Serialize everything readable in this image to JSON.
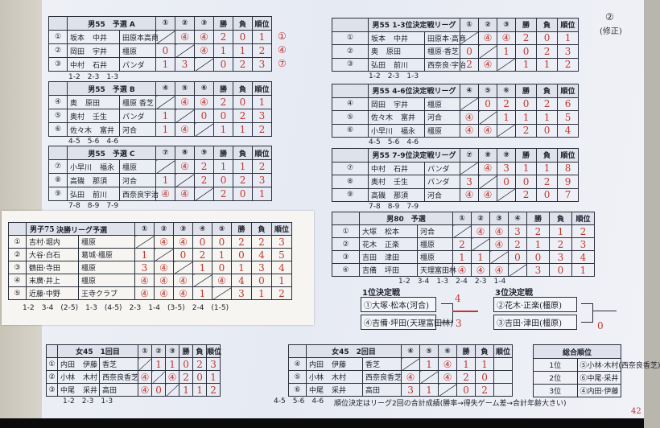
{
  "corner_note": {
    "number": "②",
    "label": "(修正)"
  },
  "page_number": "42",
  "headers": {
    "wins": "勝",
    "losses": "負",
    "rank": "順位"
  },
  "tables": [
    {
      "id": "m55-a",
      "title": "男55　予選 A",
      "cols": [
        "①",
        "②",
        "③"
      ],
      "rows": [
        {
          "no": "①",
          "p1": "坂本",
          "p2": "中井",
          "club": "田原本高商",
          "results": [
            "",
            "④",
            "④"
          ],
          "w": "2",
          "l": "0",
          "rank": "1"
        },
        {
          "no": "②",
          "p1": "岡田",
          "p2": "宇井",
          "club": "橿原",
          "results": [
            "0",
            "",
            "④"
          ],
          "w": "1",
          "l": "1",
          "rank": "2"
        },
        {
          "no": "③",
          "p1": "中村",
          "p2": "石井",
          "club": "パンダ",
          "results": [
            "1",
            "3",
            ""
          ],
          "w": "0",
          "l": "2",
          "rank": "3"
        }
      ],
      "matches": [
        "1-2",
        "2-3",
        "1-3"
      ],
      "margin": [
        "①",
        "④",
        "⑦"
      ]
    },
    {
      "id": "m55-b",
      "title": "男55　予選 B",
      "cols": [
        "④",
        "⑤",
        "⑥"
      ],
      "rows": [
        {
          "no": "④",
          "p1": "奥",
          "p2": "原田",
          "club": "橿原 香芝",
          "results": [
            "",
            "④",
            "④"
          ],
          "w": "2",
          "l": "0",
          "rank": "1"
        },
        {
          "no": "⑤",
          "p1": "奥村",
          "p2": "壬生",
          "club": "パンダ",
          "results": [
            "1",
            "",
            "0"
          ],
          "w": "0",
          "l": "2",
          "rank": "3"
        },
        {
          "no": "⑥",
          "p1": "佐々木",
          "p2": "富井",
          "club": "河合",
          "results": [
            "1",
            "④",
            ""
          ],
          "w": "1",
          "l": "1",
          "rank": "2"
        }
      ],
      "matches": [
        "4-5",
        "5-6",
        "4-6"
      ]
    },
    {
      "id": "m55-c",
      "title": "男55　予選 C",
      "cols": [
        "⑦",
        "⑧",
        "⑨"
      ],
      "rows": [
        {
          "no": "⑦",
          "p1": "小早川",
          "p2": "福永",
          "club": "橿原",
          "results": [
            "",
            "④",
            "2"
          ],
          "w": "1",
          "l": "1",
          "rank": "2"
        },
        {
          "no": "⑧",
          "p1": "高磯",
          "p2": "那須",
          "club": "河合",
          "results": [
            "1",
            "",
            "2"
          ],
          "w": "0",
          "l": "2",
          "rank": "3"
        },
        {
          "no": "⑨",
          "p1": "弘田",
          "p2": "前川",
          "club": "西奈良宇治",
          "results": [
            "④",
            "④",
            ""
          ],
          "w": "2",
          "l": "0",
          "rank": "1"
        }
      ],
      "matches": [
        "7-8",
        "8-9",
        "7-9"
      ]
    },
    {
      "id": "m55-13",
      "title": "男55 1-3位決定戦リーグ",
      "cols": [
        "①",
        "②",
        "③"
      ],
      "rows": [
        {
          "no": "①",
          "p1": "坂本",
          "p2": "中井",
          "club": "田原本·高商",
          "results": [
            "",
            "④",
            "④"
          ],
          "w": "2",
          "l": "0",
          "rank": "1"
        },
        {
          "no": "②",
          "p1": "奥",
          "p2": "原田",
          "club": "橿原·香芝",
          "results": [
            "0",
            "",
            "1"
          ],
          "w": "0",
          "l": "2",
          "rank": "3"
        },
        {
          "no": "③",
          "p1": "弘田",
          "p2": "前川",
          "club": "西奈良·宇治",
          "results": [
            "2",
            "④",
            ""
          ],
          "w": "1",
          "l": "1",
          "rank": "2"
        }
      ],
      "matches": [
        "1-2",
        "2-3",
        "1-3"
      ]
    },
    {
      "id": "m55-46",
      "title": "男55 4-6位決定戦リーグ",
      "cols": [
        "④",
        "⑤",
        "⑥"
      ],
      "rows": [
        {
          "no": "④",
          "p1": "岡田",
          "p2": "宇井",
          "club": "橿原",
          "results": [
            "",
            "0",
            "2"
          ],
          "w": "0",
          "l": "2",
          "rank": "6"
        },
        {
          "no": "⑤",
          "p1": "佐々木",
          "p2": "富井",
          "club": "河合",
          "results": [
            "④",
            "",
            "1"
          ],
          "w": "1",
          "l": "1",
          "rank": "5"
        },
        {
          "no": "⑥",
          "p1": "小早川",
          "p2": "福永",
          "club": "橿原",
          "results": [
            "④",
            "④",
            ""
          ],
          "w": "2",
          "l": "0",
          "rank": "4"
        }
      ],
      "matches": [
        "4-5",
        "5-6",
        "4-6"
      ]
    },
    {
      "id": "m55-79",
      "title": "男55 7-9位決定戦リーグ",
      "cols": [
        "⑦",
        "⑧",
        "⑨"
      ],
      "rows": [
        {
          "no": "⑦",
          "p1": "中村",
          "p2": "石井",
          "club": "パンダ",
          "results": [
            "",
            "④",
            "3"
          ],
          "w": "1",
          "l": "1",
          "rank": "8"
        },
        {
          "no": "⑧",
          "p1": "奥村",
          "p2": "壬生",
          "club": "パンダ",
          "results": [
            "3",
            "",
            "0"
          ],
          "w": "0",
          "l": "2",
          "rank": "9"
        },
        {
          "no": "⑨",
          "p1": "高磯",
          "p2": "那須",
          "club": "河合",
          "results": [
            "④",
            "④",
            ""
          ],
          "w": "2",
          "l": "0",
          "rank": "7"
        }
      ],
      "matches": [
        "7-8",
        "8-9",
        "7-9"
      ]
    },
    {
      "id": "m80",
      "title": "男80　予選",
      "cols": [
        "①",
        "②",
        "③",
        "④"
      ],
      "rows": [
        {
          "no": "①",
          "p1": "大塚",
          "p2": "松本",
          "club": "河合",
          "results": [
            "",
            "④",
            "④",
            "3"
          ],
          "w": "2",
          "l": "1",
          "rank": "2"
        },
        {
          "no": "②",
          "p1": "花木",
          "p2": "正楽",
          "club": "橿原",
          "results": [
            "2",
            "",
            "④",
            "2"
          ],
          "w": "1",
          "l": "2",
          "rank": "3"
        },
        {
          "no": "③",
          "p1": "吉田",
          "p2": "津田",
          "club": "橿原",
          "results": [
            "1",
            "1",
            "",
            "0"
          ],
          "w": "0",
          "l": "3",
          "rank": "4"
        },
        {
          "no": "④",
          "p1": "吉備",
          "p2": "坪田",
          "club": "天理富田林",
          "results": [
            "④",
            "④",
            "④",
            ""
          ],
          "w": "3",
          "l": "0",
          "rank": "1"
        }
      ],
      "matches": [
        "1-2",
        "3-4",
        "1-3",
        "2-4",
        "2-3",
        "1-4"
      ]
    },
    {
      "id": "m75",
      "title": "男子75",
      "subtitle": "決勝リーグ予選",
      "cols": [
        "①",
        "②",
        "③",
        "④",
        "⑤"
      ],
      "rows": [
        {
          "no": "①",
          "p1": "吉村·堀内",
          "p2": "",
          "club": "橿原",
          "results": [
            "",
            "④",
            "④",
            "0",
            "0"
          ],
          "w": "2",
          "l": "2",
          "rank": "3"
        },
        {
          "no": "②",
          "p1": "大谷·白石",
          "p2": "",
          "club": "葛城·橿原",
          "results": [
            "1",
            "",
            "0",
            "2",
            "1"
          ],
          "w": "0",
          "l": "4",
          "rank": "5"
        },
        {
          "no": "③",
          "p1": "鶴田·寺田",
          "p2": "",
          "club": "橿原",
          "results": [
            "3",
            "④",
            "",
            "1",
            "0"
          ],
          "w": "1",
          "l": "3",
          "rank": "4"
        },
        {
          "no": "④",
          "p1": "末廣·井上",
          "p2": "",
          "club": "橿原",
          "results": [
            "④",
            "④",
            "④",
            "",
            "④"
          ],
          "w": "4",
          "l": "0",
          "rank": "1"
        },
        {
          "no": "⑤",
          "p1": "近藤·中野",
          "p2": "",
          "club": "王寺クラブ",
          "results": [
            "④",
            "④",
            "④",
            "1",
            ""
          ],
          "w": "3",
          "l": "1",
          "rank": "2"
        }
      ],
      "matches": [
        "1-2",
        "3-4",
        "(2-5)",
        "1-3",
        "(4-5)",
        "2-3",
        "1-4",
        "(3-5)",
        "2-4",
        "(1-5)"
      ]
    },
    {
      "id": "w45-1",
      "title": "女45　1回目",
      "cols": [
        "①",
        "②",
        "③"
      ],
      "rows": [
        {
          "no": "①",
          "p1": "内田",
          "p2": "伊藤",
          "club": "香芝",
          "results": [
            "",
            "1",
            "1"
          ],
          "w": "0",
          "l": "2",
          "rank": "3"
        },
        {
          "no": "②",
          "p1": "小林",
          "p2": "木村",
          "club": "西奈良香芝",
          "results": [
            "④",
            "",
            "④"
          ],
          "w": "2",
          "l": "0",
          "rank": "1"
        },
        {
          "no": "③",
          "p1": "中尾",
          "p2": "采井",
          "club": "高田",
          "results": [
            "④",
            "0",
            ""
          ],
          "w": "1",
          "l": "1",
          "rank": "2"
        }
      ],
      "matches": [
        "1-2",
        "2-3",
        "1-3"
      ]
    },
    {
      "id": "w45-2",
      "title": "女45　2回目",
      "cols": [
        "④",
        "⑤",
        "⑥"
      ],
      "rows": [
        {
          "no": "④",
          "p1": "内田",
          "p2": "伊藤",
          "club": "香芝",
          "results": [
            "",
            "1",
            "④"
          ],
          "w": "1",
          "l": "1",
          "rank": ""
        },
        {
          "no": "⑤",
          "p1": "小林",
          "p2": "木村",
          "club": "西奈良香芝",
          "results": [
            "④",
            "",
            "④"
          ],
          "w": "2",
          "l": "0",
          "rank": ""
        },
        {
          "no": "⑥",
          "p1": "中尾",
          "p2": "采井",
          "club": "高田",
          "results": [
            "3",
            "1",
            ""
          ],
          "w": "0",
          "l": "2",
          "rank": ""
        }
      ],
      "matches": [
        "4-5",
        "5-6",
        "4-6"
      ]
    }
  ],
  "finals": [
    {
      "title": "1位決定戦",
      "entries": [
        "①大塚·松本(河合)",
        "④吉備·坪田(天理富田林)"
      ],
      "scores": [
        "4",
        "3"
      ]
    },
    {
      "title": "3位決定戦",
      "entries": [
        "②花木·正楽(橿原)",
        "③吉田·津田(橿原)"
      ],
      "scores": [
        "",
        "0"
      ]
    }
  ],
  "overall": {
    "title": "総合順位",
    "rows": [
      {
        "place": "1位",
        "team": "⑤小林·木村(西奈良香芝)"
      },
      {
        "place": "2位",
        "team": "⑥中尾·采井"
      },
      {
        "place": "3位",
        "team": "④内田·伊藤"
      }
    ]
  },
  "note": "順位決定はリーグ2回の合計成績(勝率→得失ゲーム差→合計年齢大きい)",
  "colors": {
    "ink": "#1c1f2a",
    "handwriting": "#c2362f",
    "paper": "#eceef5"
  }
}
